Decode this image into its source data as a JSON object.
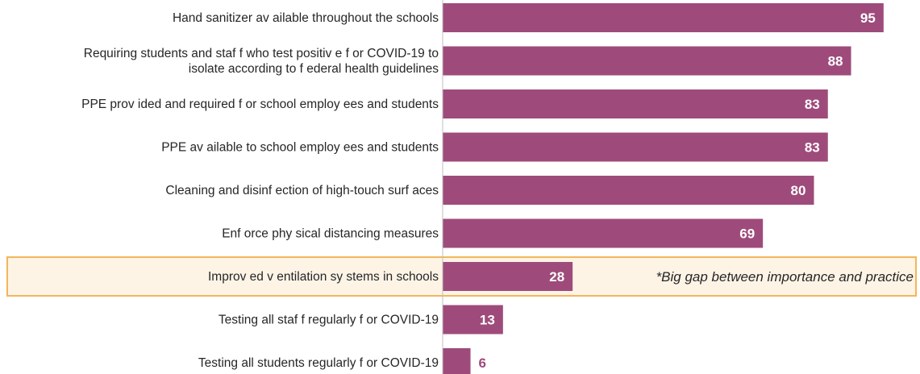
{
  "chart_data": {
    "type": "bar",
    "orientation": "horizontal",
    "categories": [
      [
        "Hand sanitizer av ailable throughout the schools"
      ],
      [
        "Requiring students and staf f who test positiv e f or COVID-19 to",
        "isolate according to f ederal health guidelines"
      ],
      [
        "PPE prov ided and required f or school employ ees and students"
      ],
      [
        "PPE av ailable to school employ ees and students"
      ],
      [
        "Cleaning and disinf ection of high-touch surf aces"
      ],
      [
        "Enf orce phy sical distancing measures"
      ],
      [
        "Improv ed v entilation sy stems in schools"
      ],
      [
        "Testing all staf f regularly f or COVID-19"
      ],
      [
        "Testing all students regularly f or COVID-19"
      ]
    ],
    "values": [
      95,
      88,
      83,
      83,
      80,
      69,
      28,
      13,
      6
    ],
    "value_labels": [
      "95",
      "88",
      "83",
      "83",
      "80",
      "69",
      "28",
      "13",
      "6"
    ],
    "highlight_index": 6,
    "annotation": "*Big gap between importance and practice",
    "colors": {
      "bar": "#9e4b7b",
      "highlight_fill": "#fdf4e6",
      "highlight_border": "#f3b65a",
      "axis": "#bfbfbf"
    }
  }
}
